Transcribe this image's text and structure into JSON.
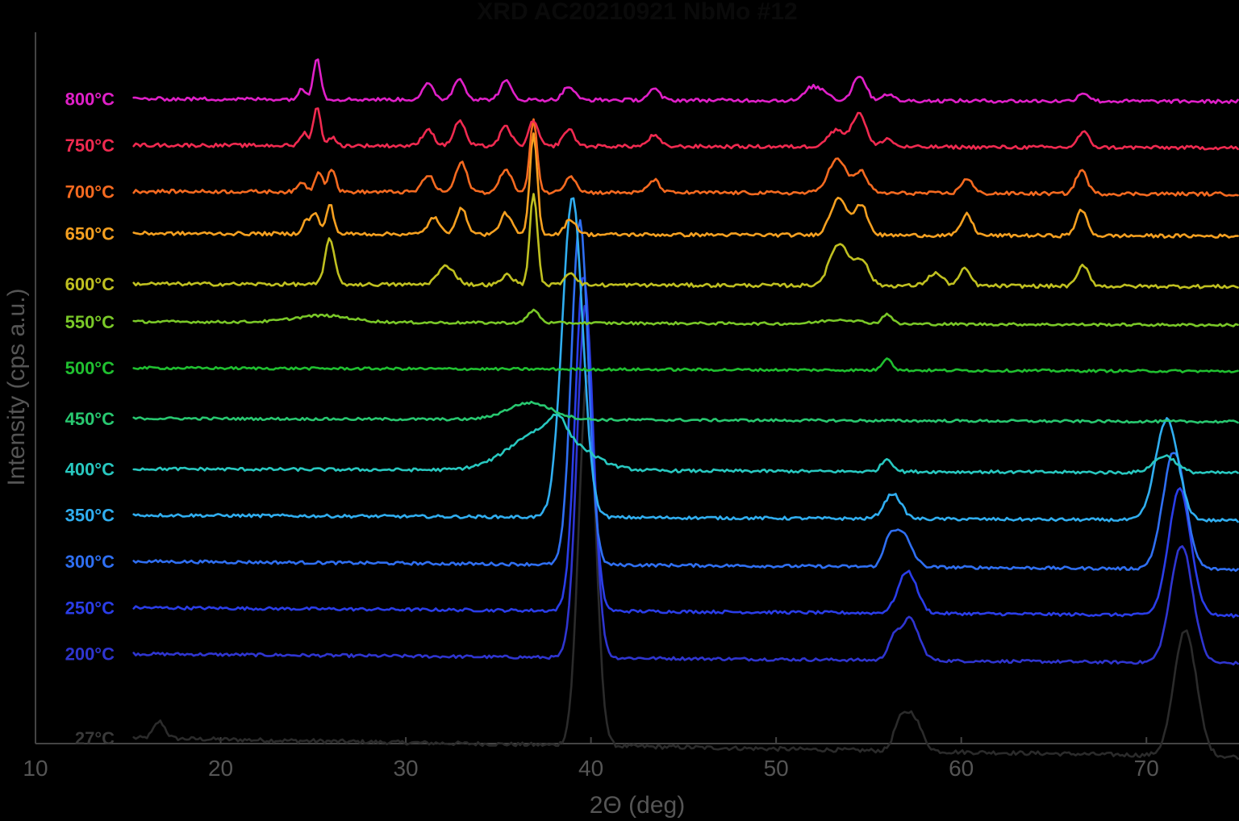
{
  "chart_data": {
    "type": "line",
    "title": "XRD AC20210921 NbMo #12",
    "xlabel": "2Θ (deg)",
    "ylabel": "Intensity (cps a.u.)",
    "xlim": [
      10,
      75
    ],
    "xticks": [
      "10",
      "20",
      "30",
      "40",
      "50",
      "60",
      "70"
    ],
    "y_scale": "stacked offset, arbitrary units",
    "grid": false,
    "legend": "labels at left of each trace",
    "x_start": 15.3,
    "series": [
      {
        "name": "27°C",
        "color": "#2b2b2b",
        "baseline": 0,
        "slope": -1.4,
        "noise": 0.8,
        "peaks": [
          [
            16.7,
            2,
            0.3
          ],
          [
            39.8,
            44,
            0.45
          ],
          [
            57.3,
            4.5,
            0.5
          ],
          [
            56.6,
            2,
            0.3
          ],
          [
            72.1,
            15,
            0.6
          ]
        ]
      },
      {
        "name": "200°C",
        "color": "#2f35d0",
        "baseline": 100,
        "slope": -0.7,
        "noise": 0.6,
        "peaks": [
          [
            39.7,
            42,
            0.45
          ],
          [
            57.2,
            5,
            0.5
          ],
          [
            56.3,
            2,
            0.3
          ],
          [
            71.9,
            14,
            0.6
          ]
        ]
      },
      {
        "name": "250°C",
        "color": "#2a3de8",
        "baseline": 155,
        "slope": -0.6,
        "noise": 0.6,
        "peaks": [
          [
            39.6,
            40,
            0.45
          ],
          [
            57.1,
            5,
            0.5
          ],
          [
            71.8,
            15,
            0.6
          ]
        ]
      },
      {
        "name": "300°C",
        "color": "#2f6ff2",
        "baseline": 210,
        "slope": -0.6,
        "noise": 0.6,
        "peaks": [
          [
            39.4,
            41,
            0.45
          ],
          [
            56.8,
            4,
            0.5
          ],
          [
            56.1,
            2.5,
            0.3
          ],
          [
            71.5,
            14,
            0.6
          ]
        ]
      },
      {
        "name": "350°C",
        "color": "#30aef0",
        "baseline": 265,
        "slope": -0.4,
        "noise": 0.6,
        "peaks": [
          [
            39.0,
            38,
            0.55
          ],
          [
            56.3,
            3,
            0.45
          ],
          [
            71.1,
            12,
            0.6
          ]
        ]
      },
      {
        "name": "400°C",
        "color": "#28c8c0",
        "baseline": 320,
        "slope": -0.3,
        "noise": 0.6,
        "peaks": [
          [
            37.6,
            5,
            1.8
          ],
          [
            38.2,
            2,
            0.4
          ],
          [
            56.0,
            1.5,
            0.3
          ],
          [
            71.0,
            2,
            0.6
          ]
        ]
      },
      {
        "name": "450°C",
        "color": "#28c870",
        "baseline": 380,
        "slope": -0.25,
        "noise": 0.5,
        "peaks": [
          [
            36.7,
            2,
            1.2
          ]
        ]
      },
      {
        "name": "500°C",
        "color": "#20c030",
        "baseline": 440,
        "slope": -0.25,
        "noise": 0.5,
        "peaks": [
          [
            56.0,
            1.5,
            0.25
          ]
        ]
      },
      {
        "name": "550°C",
        "color": "#7ac828",
        "baseline": 495,
        "slope": -0.25,
        "noise": 0.5,
        "peaks": [
          [
            25.5,
            0.8,
            1.5
          ],
          [
            36.9,
            1.5,
            0.3
          ],
          [
            53.5,
            0.5,
            1.0
          ],
          [
            56.0,
            1.2,
            0.25
          ]
        ]
      },
      {
        "name": "600°C",
        "color": "#c0c020",
        "baseline": 540,
        "slope": -0.2,
        "noise": 0.7,
        "peaks": [
          [
            25.9,
            5.5,
            0.25
          ],
          [
            32.2,
            2.2,
            0.45
          ],
          [
            35.5,
            1.2,
            0.3
          ],
          [
            36.9,
            11,
            0.2
          ],
          [
            38.9,
            1.5,
            0.3
          ],
          [
            53.4,
            5,
            0.5
          ],
          [
            54.6,
            3,
            0.4
          ],
          [
            58.6,
            1.5,
            0.4
          ],
          [
            60.2,
            2,
            0.3
          ],
          [
            66.6,
            2.5,
            0.3
          ]
        ]
      },
      {
        "name": "650°C",
        "color": "#f5a020",
        "baseline": 600,
        "slope": -0.2,
        "noise": 0.7,
        "peaks": [
          [
            25.9,
            3.5,
            0.2
          ],
          [
            25.1,
            2.5,
            0.2
          ],
          [
            24.6,
            1.5,
            0.2
          ],
          [
            31.5,
            2,
            0.3
          ],
          [
            33.0,
            3,
            0.3
          ],
          [
            35.4,
            2.5,
            0.3
          ],
          [
            36.9,
            12,
            0.2
          ],
          [
            38.9,
            1.8,
            0.3
          ],
          [
            53.4,
            4.5,
            0.45
          ],
          [
            54.6,
            3.5,
            0.35
          ],
          [
            60.3,
            2.5,
            0.3
          ],
          [
            66.5,
            3,
            0.3
          ]
        ]
      },
      {
        "name": "700°C",
        "color": "#f56a20",
        "baseline": 650,
        "slope": -0.2,
        "noise": 0.7,
        "peaks": [
          [
            25.3,
            2.5,
            0.2
          ],
          [
            26.0,
            2.8,
            0.2
          ],
          [
            24.4,
            1.2,
            0.2
          ],
          [
            31.2,
            2,
            0.3
          ],
          [
            33.0,
            3.5,
            0.3
          ],
          [
            35.4,
            2.8,
            0.3
          ],
          [
            36.9,
            8.5,
            0.2
          ],
          [
            38.9,
            2,
            0.3
          ],
          [
            43.4,
            1.5,
            0.3
          ],
          [
            53.3,
            4,
            0.5
          ],
          [
            54.6,
            2.5,
            0.35
          ],
          [
            60.3,
            1.8,
            0.3
          ],
          [
            66.5,
            2.8,
            0.3
          ]
        ]
      },
      {
        "name": "750°C",
        "color": "#f02a50",
        "baseline": 705,
        "slope": -0.2,
        "noise": 0.7,
        "peaks": [
          [
            25.2,
            4.5,
            0.2
          ],
          [
            24.5,
            1.5,
            0.2
          ],
          [
            26.0,
            1,
            0.2
          ],
          [
            31.2,
            2,
            0.3
          ],
          [
            32.9,
            3,
            0.3
          ],
          [
            35.4,
            2.3,
            0.3
          ],
          [
            36.9,
            3,
            0.25
          ],
          [
            38.8,
            2,
            0.3
          ],
          [
            43.4,
            1.3,
            0.3
          ],
          [
            53.3,
            2,
            0.5
          ],
          [
            54.5,
            4,
            0.35
          ],
          [
            56.0,
            1,
            0.3
          ],
          [
            66.6,
            1.8,
            0.3
          ]
        ]
      },
      {
        "name": "800°C",
        "color": "#e020c8",
        "baseline": 760,
        "slope": -0.2,
        "noise": 0.7,
        "peaks": [
          [
            25.2,
            5,
            0.2
          ],
          [
            24.4,
            1.2,
            0.2
          ],
          [
            31.2,
            1.8,
            0.3
          ],
          [
            32.9,
            2.5,
            0.3
          ],
          [
            35.4,
            2.2,
            0.3
          ],
          [
            38.8,
            1.6,
            0.3
          ],
          [
            43.4,
            1.3,
            0.3
          ],
          [
            51.9,
            1.5,
            0.35
          ],
          [
            52.6,
            1,
            0.35
          ],
          [
            54.5,
            3,
            0.35
          ],
          [
            56.0,
            0.8,
            0.3
          ],
          [
            66.6,
            1,
            0.3
          ]
        ]
      }
    ]
  }
}
